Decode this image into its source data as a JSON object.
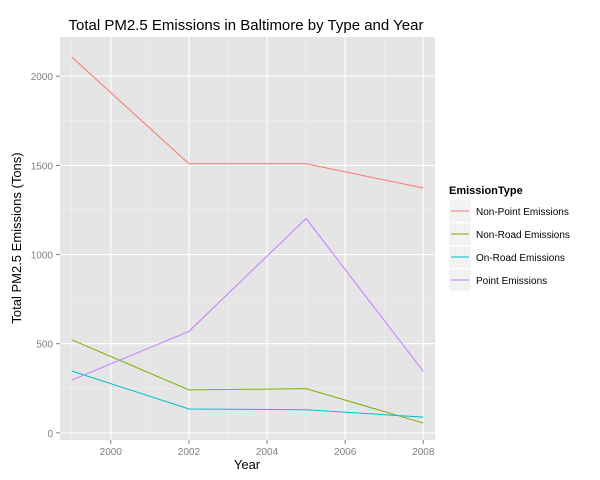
{
  "chart_data": {
    "type": "line",
    "title": "Total PM2.5 Emissions in Baltimore by Type and Year",
    "xlabel": "Year",
    "ylabel": "Total PM2.5 Emissions (Tons)",
    "x": [
      1999,
      2002,
      2005,
      2008
    ],
    "xlim": [
      1998.7,
      2008.3
    ],
    "ylim": [
      -40,
      2220
    ],
    "xticks": [
      2000,
      2002,
      2004,
      2006,
      2008
    ],
    "yticks": [
      0,
      500,
      1000,
      1500,
      2000
    ],
    "legend": {
      "title": "EmissionType",
      "position": "right"
    },
    "series": [
      {
        "name": "Non-Point Emissions",
        "color": "#F8766D",
        "values": [
          2108,
          1509,
          1509,
          1373
        ]
      },
      {
        "name": "Non-Road Emissions",
        "color": "#7CAE00",
        "values": [
          522,
          241,
          248,
          55
        ]
      },
      {
        "name": "On-Road Emissions",
        "color": "#00BFC4",
        "values": [
          347,
          134,
          130,
          88
        ]
      },
      {
        "name": "Point Emissions",
        "color": "#C77CFF",
        "values": [
          296,
          569,
          1202,
          345
        ]
      }
    ]
  }
}
